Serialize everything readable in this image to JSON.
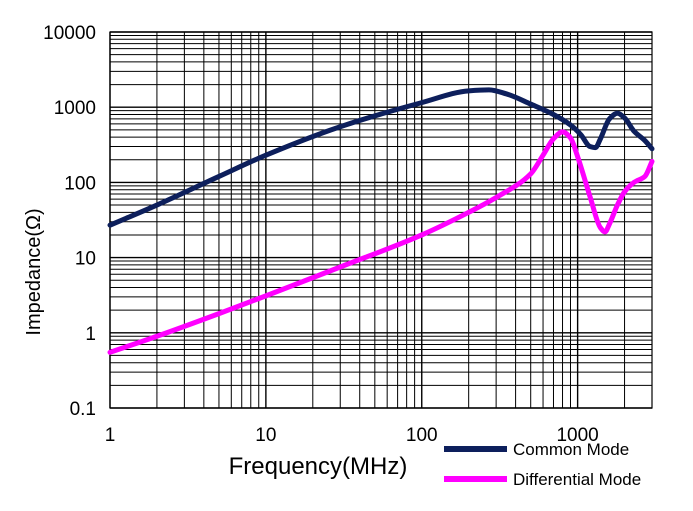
{
  "chart_data": {
    "type": "line",
    "title": "",
    "xlabel": "Frequency(MHz)",
    "ylabel": "Impedance(Ω)",
    "x_scale": "log",
    "y_scale": "log",
    "xlim": [
      1,
      3000
    ],
    "ylim": [
      0.1,
      10000
    ],
    "grid": true,
    "x_ticks": [
      1,
      10,
      100,
      1000
    ],
    "x_tick_labels": [
      "1",
      "10",
      "100",
      "1000"
    ],
    "y_ticks": [
      0.1,
      1,
      10,
      100,
      1000,
      10000
    ],
    "y_tick_labels": [
      "0.1",
      "1",
      "10",
      "100",
      "1000",
      "10000"
    ],
    "legend_position": "bottom-right",
    "series": [
      {
        "name": "Common Mode",
        "color": "#0d1f5c",
        "x": [
          1,
          2,
          5,
          10,
          30,
          100,
          200,
          270,
          350,
          500,
          700,
          900,
          1050,
          1200,
          1300,
          1400,
          1600,
          1800,
          2000,
          2300,
          2700,
          3000
        ],
        "y": [
          27,
          50,
          120,
          230,
          550,
          1150,
          1650,
          1700,
          1500,
          1100,
          800,
          580,
          430,
          300,
          290,
          380,
          700,
          830,
          720,
          480,
          360,
          280
        ]
      },
      {
        "name": "Differential Mode",
        "color": "#ff00ff",
        "x": [
          1,
          2,
          5,
          10,
          30,
          100,
          200,
          300,
          500,
          600,
          700,
          800,
          900,
          1000,
          1200,
          1400,
          1500,
          1600,
          1800,
          2000,
          2300,
          2700,
          3000
        ],
        "y": [
          0.55,
          0.9,
          1.8,
          3.1,
          7.5,
          20,
          40,
          63,
          130,
          230,
          380,
          470,
          390,
          220,
          65,
          25,
          22,
          28,
          50,
          75,
          100,
          120,
          190
        ]
      }
    ]
  }
}
